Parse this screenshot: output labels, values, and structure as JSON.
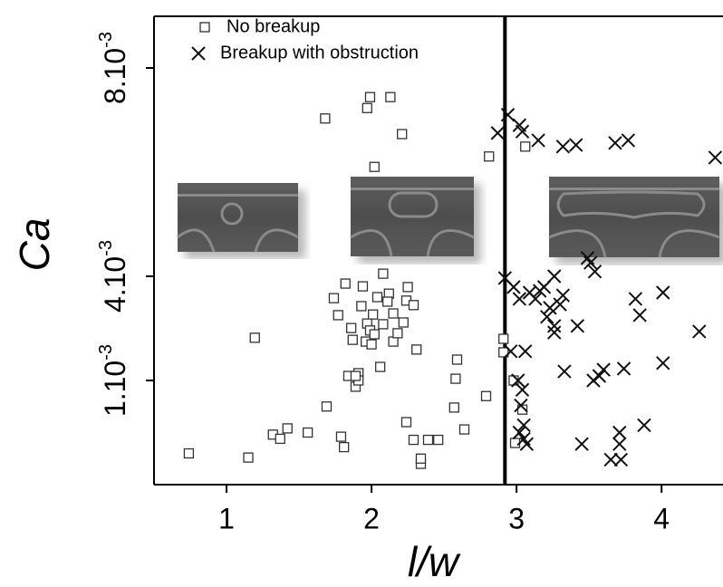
{
  "chart_data": {
    "type": "scatter",
    "x_label": "l/w",
    "y_label": "Ca",
    "xlim": [
      0.5,
      4.43
    ],
    "xticks": [
      1,
      2,
      3,
      4
    ],
    "ylim": [
      0,
      0.009
    ],
    "yticks": [
      {
        "value": 0.001,
        "label": "1.10-3"
      },
      {
        "value": 0.004,
        "label": "4.10-3"
      },
      {
        "value": 0.008,
        "label": "8.10-3"
      }
    ],
    "vline": 2.92,
    "legend": "top-left",
    "series": [
      {
        "name": "No breakup",
        "marker": "square",
        "color": "#333333",
        "x": [
          0.74,
          1.15,
          1.195,
          1.32,
          1.37,
          1.42,
          1.56,
          1.68,
          1.69,
          1.79,
          1.81,
          1.77,
          1.74,
          1.82,
          1.87,
          1.91,
          1.84,
          1.89,
          1.91,
          1.89,
          1.99,
          1.97,
          2.13,
          2.02,
          2.21,
          2.08,
          1.94,
          2.04,
          2.12,
          2.11,
          2.01,
          1.97,
          1.93,
          1.86,
          1.96,
          2.0,
          1.99,
          2.06,
          2.02,
          2.15,
          2.18,
          2.24,
          2.25,
          2.29,
          2.22,
          2.31,
          2.15,
          2.08,
          2.24,
          2.29,
          2.34,
          2.34,
          2.39,
          2.46,
          2.57,
          2.58,
          2.59,
          2.64,
          2.79,
          2.81,
          2.91,
          2.91,
          3.06,
          3.04,
          2.99,
          2.98
        ],
        "values": [
          0.0003,
          0.00026,
          0.00223,
          0.00048,
          0.00044,
          0.00054,
          0.0005,
          0.00703,
          0.00075,
          0.00046,
          0.00036,
          0.00288,
          0.00337,
          0.00379,
          0.00217,
          0.00121,
          0.00113,
          0.00094,
          0.001,
          0.00113,
          0.00744,
          0.00723,
          0.00744,
          0.0061,
          0.00673,
          0.00405,
          0.00371,
          0.0034,
          0.0035,
          0.00327,
          0.0029,
          0.00264,
          0.00314,
          0.00251,
          0.00212,
          0.00204,
          0.00244,
          0.00139,
          0.00233,
          0.00212,
          0.00236,
          0.0033,
          0.00369,
          0.00317,
          0.00267,
          0.00189,
          0.00293,
          0.00262,
          0.0006,
          0.00043,
          0.0002,
          0.00025,
          0.00043,
          0.00043,
          0.00074,
          0.00105,
          0.0016,
          0.00053,
          0.00085,
          0.0063,
          0.0022,
          0.00181,
          0.00649,
          0.00072,
          0.0004,
          0.001
        ]
      },
      {
        "name": "Breakup with obstruction",
        "marker": "cross",
        "color": "#111111",
        "x": [
          2.94,
          2.87,
          3.02,
          3.04,
          3.15,
          3.32,
          3.41,
          3.68,
          3.77,
          4.37,
          2.92,
          2.98,
          3.02,
          3.09,
          3.13,
          3.16,
          3.19,
          3.26,
          3.32,
          3.3,
          3.23,
          3.21,
          3.26,
          3.42,
          3.26,
          3.51,
          3.54,
          3.49,
          3.82,
          3.85,
          4.01,
          4.26,
          2.96,
          3.06,
          3.01,
          3.04,
          3.03,
          3.05,
          3.02,
          3.07,
          3.05,
          3.33,
          3.53,
          3.57,
          3.6,
          3.74,
          4.01,
          3.88,
          3.45,
          3.71,
          3.71,
          3.65,
          3.72
        ],
        "values": [
          0.0071,
          0.00675,
          0.0069,
          0.00678,
          0.00661,
          0.00649,
          0.00652,
          0.00656,
          0.00661,
          0.00628,
          0.00395,
          0.00369,
          0.00335,
          0.00353,
          0.00335,
          0.00358,
          0.00369,
          0.004,
          0.00345,
          0.00319,
          0.00309,
          0.00283,
          0.00257,
          0.00257,
          0.00238,
          0.00426,
          0.00409,
          0.00435,
          0.00335,
          0.00288,
          0.00353,
          0.00241,
          0.00184,
          0.00184,
          0.001,
          0.00091,
          0.00076,
          0.00057,
          0.0005,
          0.00039,
          0.00044,
          0.00126,
          0.001,
          0.00113,
          0.00131,
          0.00134,
          0.0015,
          0.00057,
          0.00039,
          0.0005,
          0.00039,
          0.00024,
          0.00024
        ]
      }
    ]
  }
}
